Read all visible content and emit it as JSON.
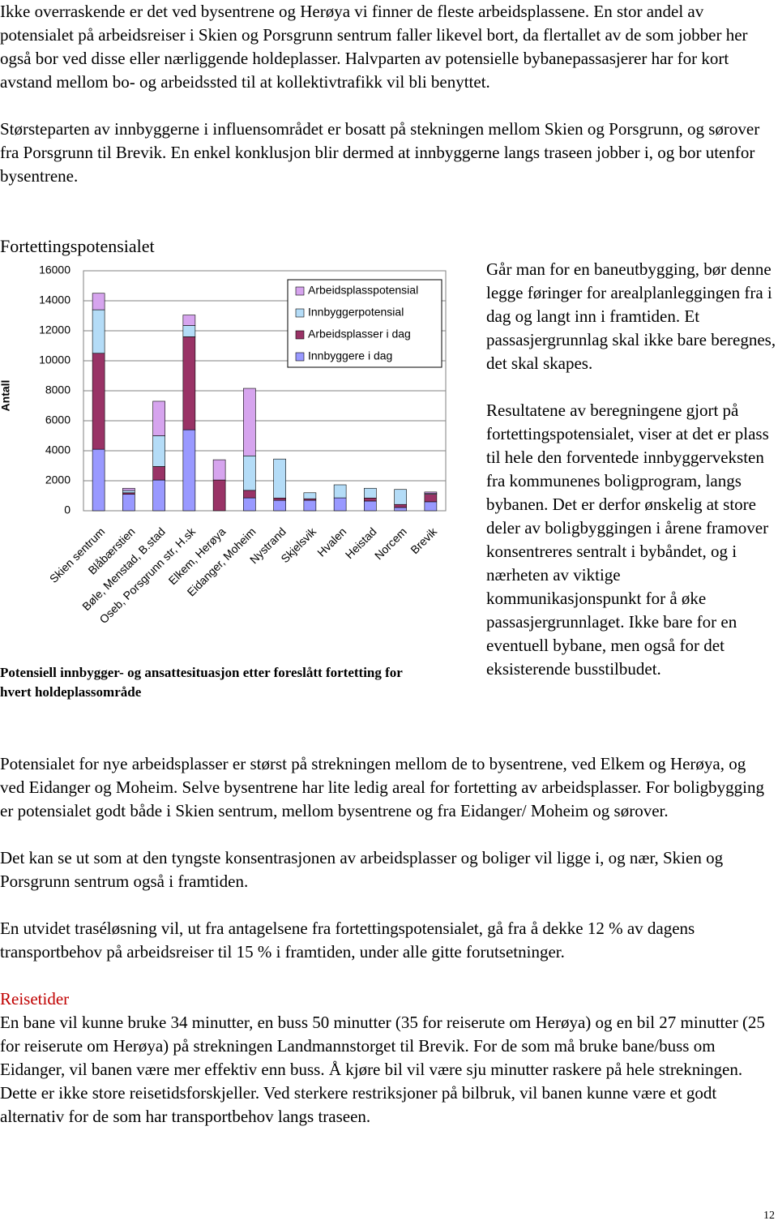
{
  "top_paragraphs": [
    "Ikke overraskende er det ved bysentrene og Herøya vi finner de fleste arbeidsplassene. En stor andel av potensialet på arbeidsreiser i Skien og Porsgrunn sentrum faller likevel bort, da flertallet av de som jobber her også bor ved disse eller nærliggende holdeplasser. Halvparten av potensielle bybanepassasjerer har for kort avstand mellom bo- og arbeidssted til at kollektivtrafikk vil bli benyttet.",
    "Størsteparten av innbyggerne i influensområdet er bosatt på stekningen mellom Skien og Porsgrunn, og sørover fra Porsgrunn til Brevik. En enkel konklusjon blir dermed at innbyggerne langs traseen jobber i, og bor utenfor bysentrene."
  ],
  "heading": "Fortettingspotensialet",
  "chart_data": {
    "type": "stacked-bar",
    "y_label": "Antall",
    "caption": "Potensiell innbygger- og ansattesituasjon etter foreslått fortetting for hvert holdeplassområde",
    "categories": [
      "Skien sentrum",
      "Blåbærstien",
      "Bøle, Menstad, B.stad",
      "Oseb, Porsgrunn str, H.sk",
      "Elkem, Herøya",
      "Eidanger, Moheim",
      "Nystrand",
      "Skjelsvik",
      "Hvalen",
      "Heistad",
      "Norcem",
      "Brevik"
    ],
    "series": [
      {
        "name": "Innbyggere i dag",
        "color": "#9999ff",
        "values": [
          4100,
          1100,
          2050,
          5400,
          0,
          860,
          700,
          700,
          860,
          650,
          220,
          600
        ]
      },
      {
        "name": "Arbeidsplasser i dag",
        "color": "#993366",
        "values": [
          6400,
          100,
          900,
          6200,
          2050,
          500,
          150,
          100,
          0,
          200,
          200,
          500
        ]
      },
      {
        "name": "Innbyggerpotensial",
        "color": "#b4dcf7",
        "values": [
          2900,
          150,
          2050,
          750,
          0,
          2300,
          2600,
          400,
          870,
          650,
          1000,
          50
        ]
      },
      {
        "name": "Arbeidsplasspotensial",
        "color": "#d6a4ee",
        "values": [
          1100,
          150,
          2300,
          700,
          1350,
          4500,
          0,
          0,
          0,
          0,
          0,
          100
        ]
      }
    ],
    "ylim": [
      0,
      16000
    ],
    "yticks": [
      0,
      2000,
      4000,
      6000,
      8000,
      10000,
      12000,
      14000,
      16000
    ],
    "grid": true,
    "legend": "top-right"
  },
  "side_paragraphs": [
    "Går man for en baneutbygging, bør denne legge føringer for arealplanleggingen fra i dag og langt inn i framtiden. Et passasjergrunnlag skal ikke bare beregnes, det skal skapes.",
    "Resultatene av beregningene gjort på fortettingspotensialet, viser at det er plass til hele den forventede innbyggerveksten fra kommunenes boligprogram, langs bybanen. Det er derfor ønskelig at store deler av boligbyggingen i årene framover konsentreres sentralt i bybåndet, og i nærheten av viktige kommunikasjonspunkt for å øke passasjergrunnlaget. Ikke bare for en eventuell bybane, men også for det eksisterende busstilbudet."
  ],
  "bottom_paragraphs": [
    "Potensialet for nye arbeidsplasser er størst på strekningen mellom de to bysentrene, ved Elkem og Herøya, og ved Eidanger og Moheim. Selve bysentrene har lite ledig areal for fortetting av arbeidsplasser. For boligbygging er potensialet godt både i Skien sentrum, mellom bysentrene og fra Eidanger/ Moheim og sørover.",
    "Det kan se ut som at den tyngste konsentrasjonen av arbeidsplasser og boliger vil ligge i, og nær, Skien og Porsgrunn sentrum også i framtiden.",
    "En utvidet traséløsning vil, ut fra antagelsene fra fortettingspotensialet, gå fra å dekke 12 % av dagens transportbehov på arbeidsreiser til 15 % i framtiden, under alle gitte forutsetninger."
  ],
  "section_heading": "Reisetider",
  "section_text": "En bane vil kunne bruke 34 minutter, en buss 50 minutter (35 for reiserute om Herøya) og en bil 27 minutter (25 for reiserute om Herøya) på strekningen Landmannstorget til Brevik. For de som må bruke bane/buss om Eidanger, vil banen være mer effektiv enn buss. Å kjøre bil vil være sju minutter raskere på hele strekningen. Dette er ikke store reisetidsforskjeller. Ved sterkere restriksjoner på bilbruk, vil banen kunne være et godt alternativ for de som har transportbehov langs traseen.",
  "page_number": "12"
}
